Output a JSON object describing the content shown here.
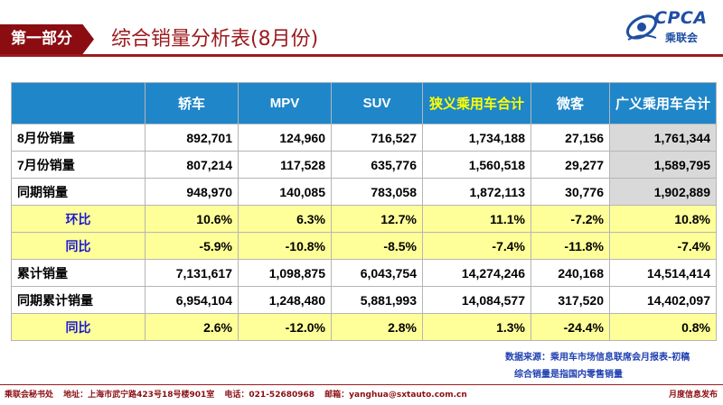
{
  "header": {
    "section_label": "第一部分",
    "title": "综合销量分析表(8月份)",
    "logo_text": "CPCA",
    "logo_sub": "乘联会",
    "logo_color": "#1f4ea3",
    "brand_color": "#9b1b1e"
  },
  "table": {
    "columns": [
      "",
      "轿车",
      "MPV",
      "SUV",
      "狭义乘用车合计",
      "微客",
      "广义乘用车合计"
    ],
    "header_color": "#1f86c9",
    "rows": [
      {
        "label": "8月份销量",
        "cells": [
          "892,701",
          "124,960",
          "716,527",
          "1,734,188",
          "27,156",
          "1,761,344"
        ]
      },
      {
        "label": "7月份销量",
        "cells": [
          "807,214",
          "117,528",
          "635,776",
          "1,560,518",
          "29,277",
          "1,589,795"
        ]
      },
      {
        "label": "同期销量",
        "cells": [
          "948,970",
          "140,085",
          "783,058",
          "1,872,113",
          "30,776",
          "1,902,889"
        ]
      },
      {
        "label": "环比",
        "cells": [
          "10.6%",
          "6.3%",
          "12.7%",
          "11.1%",
          "-7.2%",
          "10.8%"
        ]
      },
      {
        "label": "同比",
        "cells": [
          "-5.9%",
          "-10.8%",
          "-8.5%",
          "-7.4%",
          "-11.8%",
          "-7.4%"
        ]
      },
      {
        "label": "累计销量",
        "cells": [
          "7,131,617",
          "1,098,875",
          "6,043,754",
          "14,274,246",
          "240,168",
          "14,514,414"
        ]
      },
      {
        "label": "同期累计销量",
        "cells": [
          "6,954,104",
          "1,248,480",
          "5,881,993",
          "14,084,577",
          "317,520",
          "14,402,097"
        ]
      },
      {
        "label": "同比",
        "cells": [
          "2.6%",
          "-12.0%",
          "2.8%",
          "1.3%",
          "-24.4%",
          "0.8%"
        ]
      }
    ]
  },
  "notes": {
    "source": "数据来源：乘用车市场信息联席会月报表-初稿",
    "definition": "综合销量是指国内零售销量"
  },
  "footer": {
    "office": "乘联会秘书处",
    "address": "地址：上海市武宁路423号18号楼901室",
    "phone": "电话：021-52680968",
    "email": "邮箱：yanghua@sxtauto.com.cn",
    "right": "月度信息发布"
  }
}
